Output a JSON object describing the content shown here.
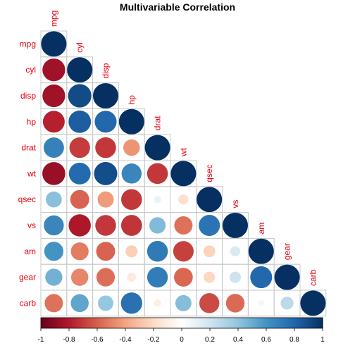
{
  "chart_data": {
    "type": "heatmap",
    "subtype": "correlation-circles-lower-triangle",
    "title": "Multivariable Correlation",
    "variables": [
      "mpg",
      "cyl",
      "disp",
      "hp",
      "drat",
      "wt",
      "qsec",
      "vs",
      "am",
      "gear",
      "carb"
    ],
    "matrix": [
      [
        1.0,
        -0.85,
        -0.85,
        -0.78,
        0.68,
        -0.87,
        0.42,
        0.66,
        0.6,
        0.48,
        -0.55
      ],
      [
        -0.85,
        1.0,
        0.9,
        0.83,
        -0.7,
        0.78,
        -0.59,
        -0.81,
        -0.52,
        -0.49,
        0.53
      ],
      [
        -0.85,
        0.9,
        1.0,
        0.79,
        -0.71,
        0.89,
        -0.43,
        -0.71,
        -0.59,
        -0.56,
        0.39
      ],
      [
        -0.78,
        0.83,
        0.79,
        1.0,
        -0.45,
        0.66,
        -0.71,
        -0.72,
        -0.24,
        -0.13,
        0.75
      ],
      [
        0.68,
        -0.7,
        -0.71,
        -0.45,
        1.0,
        -0.71,
        0.09,
        0.44,
        0.71,
        0.7,
        -0.09
      ],
      [
        -0.87,
        0.78,
        0.89,
        0.66,
        -0.71,
        1.0,
        -0.17,
        -0.55,
        -0.69,
        -0.58,
        0.43
      ],
      [
        0.42,
        -0.59,
        -0.43,
        -0.71,
        0.09,
        -0.17,
        1.0,
        0.74,
        -0.23,
        -0.21,
        -0.66
      ],
      [
        0.66,
        -0.81,
        -0.71,
        -0.72,
        0.44,
        -0.55,
        0.74,
        1.0,
        0.17,
        0.21,
        -0.57
      ],
      [
        0.6,
        -0.52,
        -0.59,
        -0.24,
        0.71,
        -0.69,
        -0.23,
        0.17,
        1.0,
        0.79,
        0.06
      ],
      [
        0.48,
        -0.49,
        -0.56,
        -0.13,
        0.7,
        -0.58,
        -0.21,
        0.21,
        0.79,
        1.0,
        0.27
      ],
      [
        -0.55,
        0.53,
        0.39,
        0.75,
        -0.09,
        0.43,
        -0.66,
        -0.57,
        0.06,
        0.27,
        1.0
      ]
    ],
    "colorbar": {
      "range": [
        -1,
        1
      ],
      "ticks": [
        "-1",
        "-0.8",
        "-0.6",
        "-0.4",
        "-0.2",
        "0",
        "0.2",
        "0.4",
        "0.6",
        "0.8",
        "1"
      ],
      "colors": [
        "#67001f",
        "#b2182b",
        "#d6604d",
        "#f4a582",
        "#fddbc7",
        "#ffffff",
        "#d1e5f0",
        "#92c5de",
        "#4393c3",
        "#2166ac",
        "#053061"
      ]
    },
    "label_color": "#e8000b",
    "grid": true,
    "legend": "bottom"
  }
}
